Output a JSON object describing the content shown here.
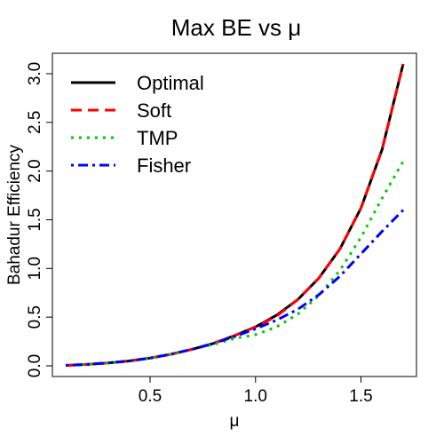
{
  "chart_data": {
    "type": "line",
    "title": "Max BE vs μ",
    "xlabel": "μ",
    "ylabel": "Bahadur Efficiency",
    "xlim": [
      0.1,
      1.7
    ],
    "ylim": [
      0,
      3.1
    ],
    "xticks": [
      0.5,
      1.0,
      1.5
    ],
    "xtick_labels": [
      "0.5",
      "1.0",
      "1.5"
    ],
    "yticks": [
      0.0,
      0.5,
      1.0,
      1.5,
      2.0,
      2.5,
      3.0
    ],
    "ytick_labels": [
      "0.0",
      "0.5",
      "1.0",
      "1.5",
      "2.0",
      "2.5",
      "3.0"
    ],
    "grid": false,
    "legend_position": "top-left",
    "x": [
      0.1,
      0.2,
      0.3,
      0.4,
      0.5,
      0.6,
      0.7,
      0.8,
      0.9,
      1.0,
      1.1,
      1.2,
      1.3,
      1.4,
      1.5,
      1.6,
      1.7
    ],
    "series": [
      {
        "name": "Optimal",
        "color": "#000000",
        "dash": "solid",
        "values": [
          0.005,
          0.015,
          0.03,
          0.05,
          0.08,
          0.12,
          0.17,
          0.23,
          0.31,
          0.4,
          0.52,
          0.68,
          0.9,
          1.2,
          1.62,
          2.22,
          3.1
        ]
      },
      {
        "name": "Soft",
        "color": "#ff0000",
        "dash": "dashed",
        "values": [
          0.005,
          0.015,
          0.03,
          0.05,
          0.08,
          0.12,
          0.17,
          0.23,
          0.31,
          0.4,
          0.51,
          0.68,
          0.9,
          1.2,
          1.62,
          2.22,
          3.1
        ]
      },
      {
        "name": "TMP",
        "color": "#00cc00",
        "dash": "dotted",
        "values": [
          0.005,
          0.015,
          0.03,
          0.05,
          0.08,
          0.12,
          0.17,
          0.22,
          0.28,
          0.32,
          0.4,
          0.53,
          0.72,
          0.98,
          1.32,
          1.72,
          2.1
        ]
      },
      {
        "name": "Fisher",
        "color": "#0000ff",
        "dash": "dotdash",
        "values": [
          0.005,
          0.015,
          0.03,
          0.05,
          0.08,
          0.12,
          0.17,
          0.23,
          0.3,
          0.38,
          0.47,
          0.58,
          0.73,
          0.92,
          1.15,
          1.38,
          1.6
        ]
      }
    ]
  }
}
